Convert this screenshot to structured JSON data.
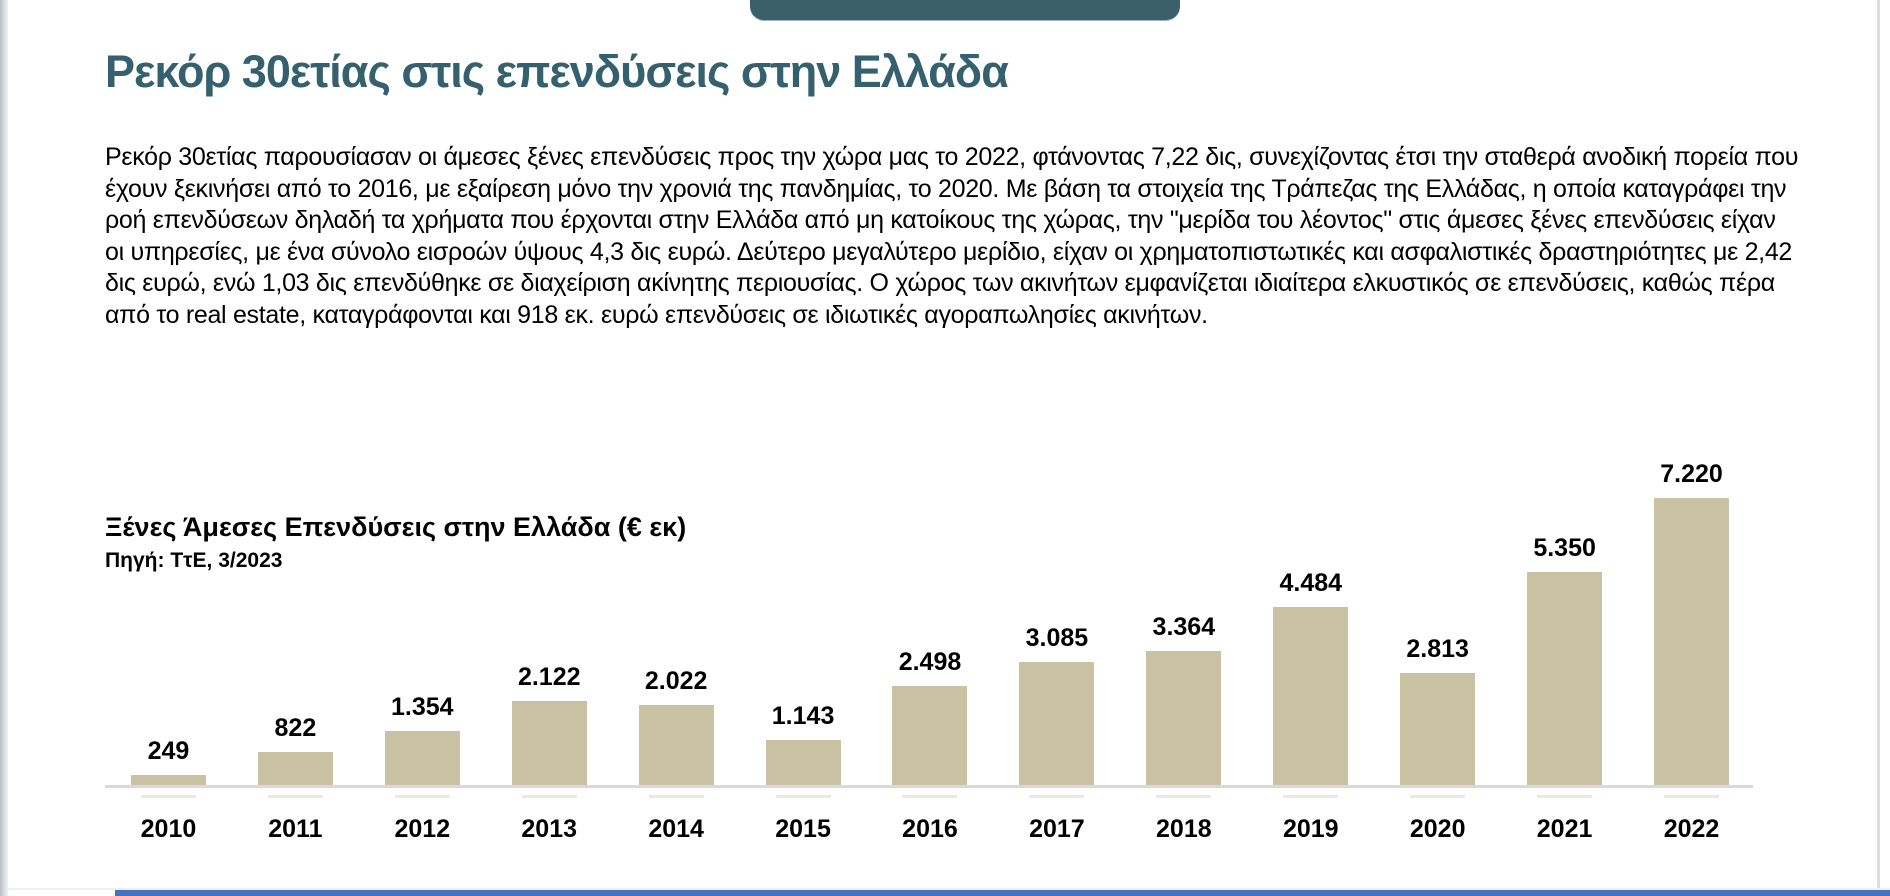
{
  "page": {
    "title": "Ρεκόρ 30ετίας στις επενδύσεις στην Ελλάδα",
    "title_color": "#35606e",
    "top_tab_color": "#3c5f6c",
    "bottom_bar_color": "#4573c4",
    "body_paragraph": "Ρεκόρ 30ετίας παρουσίασαν οι άμεσες ξένες επενδύσεις προς την χώρα μας το 2022, φτάνοντας 7,22 δις, συνεχίζοντας έτσι την σταθερά ανοδική πορεία που έχουν ξεκινήσει από το 2016, με εξαίρεση μόνο την χρονιά της πανδημίας, το 2020. Με βάση τα στοιχεία της Τράπεζας της Ελλάδας, η οποία καταγράφει την ροή επενδύσεων δηλαδή τα χρήματα που έρχονται στην Ελλάδα από μη κατοίκους της χώρας, την \"μερίδα του λέοντος\" στις άμεσες ξένες επενδύσεις είχαν οι υπηρεσίες, με ένα σύνολο εισροών ύψους 4,3 δις ευρώ. Δεύτερο μεγαλύτερο μερίδιο, είχαν οι χρηματοπιστωτικές και ασφαλιστικές δραστηριότητες με 2,42 δις ευρώ, ενώ 1,03 δις επενδύθηκε σε διαχείριση ακίνητης περιουσίας. Ο χώρος των ακινήτων εμφανίζεται ιδιαίτερα ελκυστικός σε επενδύσεις, καθώς πέρα από το real estate, καταγράφονται και 918 εκ. ευρώ επενδύσεις σε ιδιωτικές αγοραπωλησίες ακινήτων."
  },
  "chart": {
    "title": "Ξένες Άμεσες Επενδύσεις στην Ελλάδα (€ εκ)",
    "source": "Πηγή: ΤτΕ, 3/2023",
    "bar_color": "#c8c2a2",
    "axis_color": "#d9d9d9"
  },
  "chart_data": {
    "type": "bar",
    "title": "Ξένες Άμεσες Επενδύσεις στην Ελλάδα (€ εκ)",
    "subtitle": "Πηγή: ΤτΕ, 3/2023",
    "categories": [
      "2010",
      "2011",
      "2012",
      "2013",
      "2014",
      "2015",
      "2016",
      "2017",
      "2018",
      "2019",
      "2020",
      "2021",
      "2022"
    ],
    "values": [
      249,
      822,
      1354,
      2122,
      2022,
      1143,
      2498,
      3085,
      3364,
      4484,
      2813,
      5350,
      7220
    ],
    "value_labels": [
      "249",
      "822",
      "1.354",
      "2.122",
      "2.022",
      "1.143",
      "2.498",
      "3.085",
      "3.364",
      "4.484",
      "2.813",
      "5.350",
      "7.220"
    ],
    "xlabel": "",
    "ylabel": "",
    "ylim": [
      0,
      7220
    ],
    "grid": false,
    "legend": false,
    "data_labels_position": "above bars",
    "bar_color": "#c8c2a2"
  }
}
